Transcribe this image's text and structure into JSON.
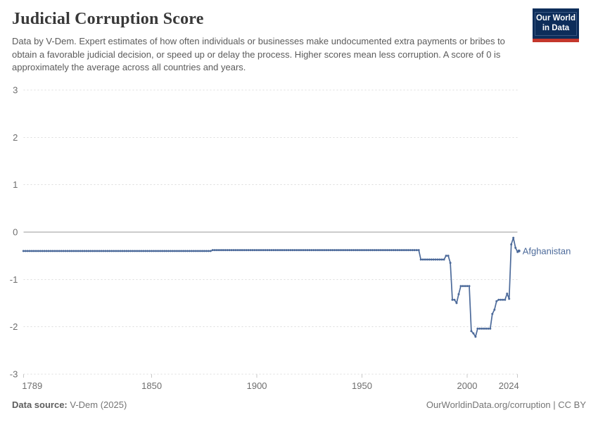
{
  "header": {
    "title": "Judicial Corruption Score",
    "subtitle": "Data by V-Dem. Expert estimates of how often individuals or businesses make undocumented extra payments or bribes to obtain a favorable judicial decision, or speed up or delay the process. Higher scores mean less corruption. A score of 0 is approximately the average across all countries and years.",
    "logo": {
      "line1": "Our World",
      "line2": "in Data",
      "bg_color": "#0d2d5a",
      "accent_color": "#c4372c"
    }
  },
  "footer": {
    "source_label": "Data source:",
    "source_value": " V-Dem (2025)",
    "attribution": "OurWorldinData.org/corruption | CC BY"
  },
  "chart_data": {
    "type": "line",
    "title": "Judicial Corruption Score",
    "xlabel": "",
    "ylabel": "",
    "xlim": [
      1789,
      2024
    ],
    "ylim": [
      -3,
      3
    ],
    "grid": true,
    "legend_position": "end-of-line-label",
    "x_ticks": [
      1789,
      1850,
      1900,
      1950,
      2000,
      2024
    ],
    "y_ticks": [
      3,
      2,
      1,
      0,
      -1,
      -2,
      -3
    ],
    "line_color": "#4c6a9a",
    "grid_color": "#dcdcdc",
    "zero_line_color": "#9a9a9a",
    "tick_label_color": "#6e6e6e",
    "series": [
      {
        "name": "Afghanistan",
        "color": "#4c6a9a",
        "value_segments_year_start_end_value": [
          [
            1789,
            1878,
            -0.4
          ],
          [
            1879,
            1977,
            -0.38
          ],
          [
            1978,
            1989,
            -0.58
          ],
          [
            1990,
            1991,
            -0.5
          ],
          [
            1992,
            1992,
            -0.65
          ],
          [
            1993,
            1994,
            -1.43
          ],
          [
            1995,
            1995,
            -1.5
          ],
          [
            1996,
            1996,
            -1.31
          ],
          [
            1997,
            2001,
            -1.14
          ],
          [
            2002,
            2002,
            -2.09
          ],
          [
            2003,
            2003,
            -2.14
          ],
          [
            2004,
            2004,
            -2.21
          ],
          [
            2005,
            2011,
            -2.04
          ],
          [
            2012,
            2012,
            -1.73
          ],
          [
            2013,
            2013,
            -1.64
          ],
          [
            2014,
            2014,
            -1.46
          ],
          [
            2015,
            2018,
            -1.43
          ],
          [
            2019,
            2019,
            -1.3
          ],
          [
            2020,
            2020,
            -1.41
          ],
          [
            2021,
            2021,
            -0.26
          ],
          [
            2022,
            2022,
            -0.12
          ],
          [
            2023,
            2023,
            -0.33
          ],
          [
            2024,
            2024,
            -0.42
          ]
        ]
      }
    ]
  }
}
